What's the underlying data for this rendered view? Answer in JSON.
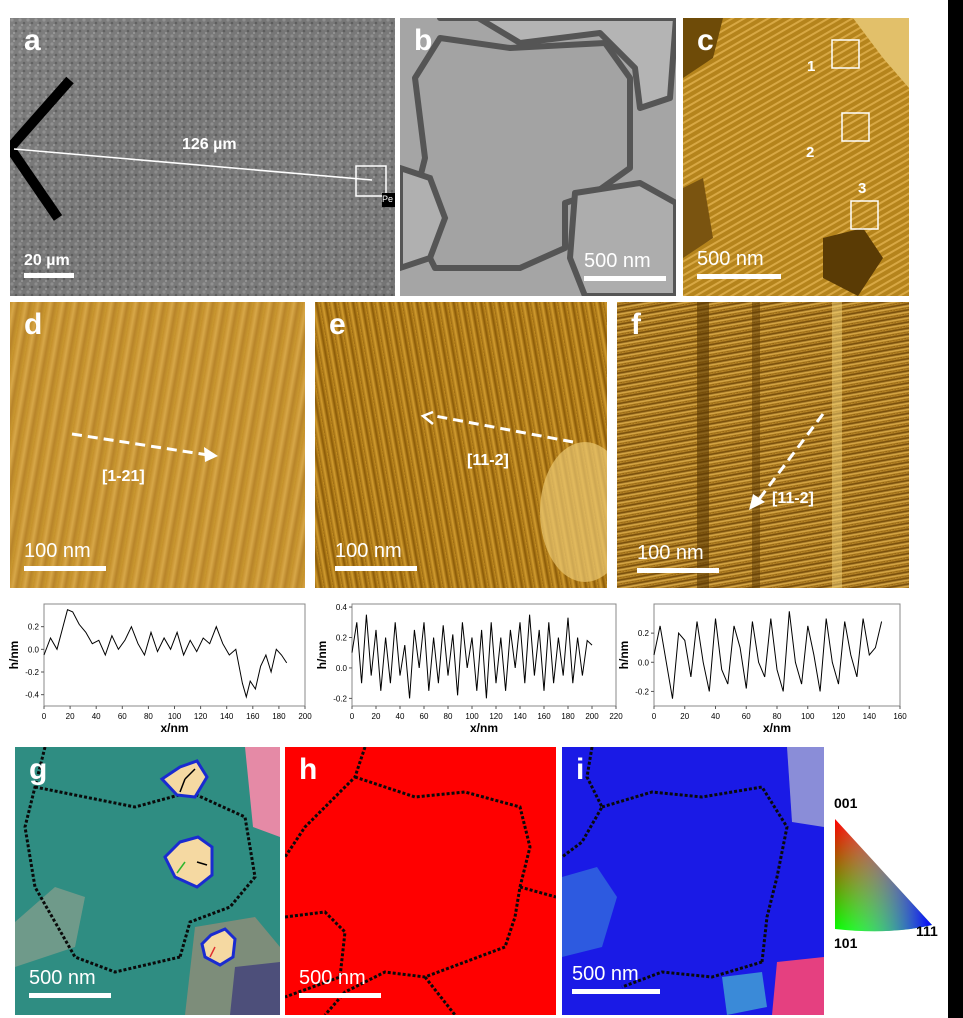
{
  "panels": {
    "a": {
      "label": "a",
      "distance": "126 µm",
      "scale": "20 µm",
      "corner": "Pe"
    },
    "b": {
      "label": "b",
      "scale": "500 nm"
    },
    "c": {
      "label": "c",
      "scale": "500 nm",
      "boxes": [
        "1",
        "2",
        "3"
      ]
    },
    "d": {
      "label": "d",
      "direction": "[1-21]",
      "scale": "100 nm"
    },
    "e": {
      "label": "e",
      "direction": "[11-2]",
      "scale": "100 nm"
    },
    "f": {
      "label": "f",
      "direction": "[11-2]",
      "scale": "100 nm"
    },
    "g": {
      "label": "g",
      "scale": "500 nm"
    },
    "h": {
      "label": "h",
      "scale": "500 nm"
    },
    "i": {
      "label": "i",
      "scale": "500 nm"
    }
  },
  "legend": {
    "top": "001",
    "left": "101",
    "right": "111"
  },
  "chart_data": [
    {
      "type": "line",
      "xlabel": "x/nm",
      "ylabel": "h/nm",
      "xlim": [
        0,
        200
      ],
      "ylim": [
        -0.5,
        0.4
      ],
      "xticks": [
        "0",
        "20",
        "40",
        "60",
        "80",
        "100",
        "120",
        "140",
        "160",
        "180",
        "200"
      ],
      "yticks": [
        "0.2",
        "0.0",
        "-0.2",
        "-0.4"
      ],
      "x": [
        0,
        5,
        10,
        15,
        18,
        22,
        27,
        32,
        37,
        42,
        47,
        52,
        57,
        62,
        67,
        72,
        77,
        82,
        87,
        92,
        97,
        102,
        107,
        112,
        117,
        122,
        127,
        132,
        137,
        142,
        147,
        152,
        155,
        158,
        162,
        166,
        170,
        174,
        178,
        182,
        186
      ],
      "y": [
        -0.05,
        0.1,
        0.0,
        0.22,
        0.35,
        0.33,
        0.22,
        0.15,
        0.05,
        0.08,
        -0.05,
        0.12,
        0.0,
        0.08,
        0.2,
        0.05,
        -0.05,
        0.15,
        -0.02,
        0.1,
        0.0,
        0.15,
        -0.05,
        0.08,
        -0.02,
        0.1,
        0.05,
        0.2,
        0.05,
        -0.05,
        0.0,
        -0.3,
        -0.42,
        -0.28,
        -0.35,
        -0.15,
        -0.05,
        -0.2,
        0.0,
        -0.05,
        -0.12
      ]
    },
    {
      "type": "line",
      "xlabel": "x/nm",
      "ylabel": "h/nm",
      "xlim": [
        0,
        220
      ],
      "ylim": [
        -0.25,
        0.42
      ],
      "xticks": [
        "0",
        "20",
        "40",
        "60",
        "80",
        "100",
        "120",
        "140",
        "160",
        "180",
        "200",
        "220"
      ],
      "yticks": [
        "0.4",
        "0.2",
        "0.0",
        "-0.2"
      ],
      "x": [
        0,
        4,
        8,
        12,
        16,
        20,
        24,
        28,
        32,
        36,
        40,
        44,
        48,
        52,
        56,
        60,
        64,
        68,
        72,
        76,
        80,
        84,
        88,
        92,
        96,
        100,
        104,
        108,
        112,
        116,
        120,
        124,
        128,
        132,
        136,
        140,
        144,
        148,
        152,
        156,
        160,
        164,
        168,
        172,
        176,
        180,
        184,
        188,
        192,
        196,
        200
      ],
      "y": [
        0.1,
        0.3,
        -0.1,
        0.35,
        -0.05,
        0.25,
        -0.15,
        0.2,
        -0.1,
        0.3,
        -0.05,
        0.15,
        -0.2,
        0.25,
        0.0,
        0.3,
        -0.15,
        0.2,
        -0.1,
        0.28,
        -0.05,
        0.22,
        -0.18,
        0.3,
        0.0,
        0.2,
        -0.15,
        0.25,
        -0.2,
        0.3,
        -0.1,
        0.2,
        -0.15,
        0.25,
        0.0,
        0.3,
        -0.1,
        0.35,
        -0.05,
        0.25,
        -0.15,
        0.3,
        -0.1,
        0.2,
        -0.05,
        0.33,
        -0.1,
        0.2,
        -0.05,
        0.18,
        0.15
      ]
    },
    {
      "type": "line",
      "xlabel": "x/nm",
      "ylabel": "h/nm",
      "xlim": [
        0,
        160
      ],
      "ylim": [
        -0.3,
        0.4
      ],
      "xticks": [
        "0",
        "20",
        "40",
        "60",
        "80",
        "100",
        "120",
        "140",
        "160"
      ],
      "yticks": [
        "0.2",
        "0.0",
        "-0.2"
      ],
      "x": [
        0,
        4,
        8,
        12,
        16,
        20,
        24,
        28,
        32,
        36,
        40,
        44,
        48,
        52,
        56,
        60,
        64,
        68,
        72,
        76,
        80,
        84,
        88,
        92,
        96,
        100,
        104,
        108,
        112,
        116,
        120,
        124,
        128,
        132,
        136,
        140,
        144,
        148
      ],
      "y": [
        0.05,
        0.25,
        0.0,
        -0.25,
        0.2,
        0.15,
        -0.1,
        0.28,
        0.0,
        -0.2,
        0.3,
        -0.05,
        -0.15,
        0.25,
        0.1,
        -0.18,
        0.28,
        0.0,
        -0.1,
        0.3,
        -0.05,
        -0.2,
        0.35,
        0.0,
        -0.15,
        0.25,
        0.05,
        -0.2,
        0.3,
        0.0,
        -0.15,
        0.28,
        0.05,
        -0.1,
        0.3,
        0.05,
        0.1,
        0.28
      ]
    }
  ]
}
